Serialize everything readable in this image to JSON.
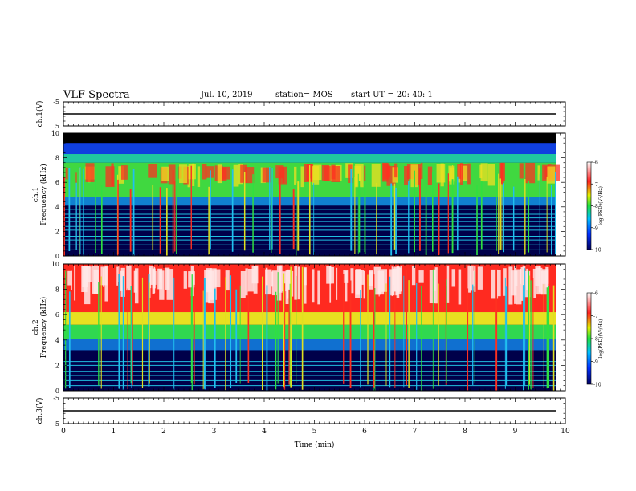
{
  "header": {
    "title": "VLF Spectra",
    "date": "Jul. 10, 2019",
    "station": "station= MOS",
    "start": "start  UT =   20: 40: 1"
  },
  "chart_data": [
    {
      "type": "line",
      "panel": "ch1-waveform",
      "ylabel": "ch.1(V)",
      "xlim": [
        0,
        10
      ],
      "ylim": [
        -5,
        5
      ],
      "yticks": [
        "5",
        "-5"
      ],
      "series": [
        {
          "x": [
            0,
            9.82
          ],
          "values": [
            0,
            0
          ]
        }
      ]
    },
    {
      "type": "heatmap",
      "panel": "ch1-spectrogram",
      "ylabel": "ch.1\nFrequency (kHz)",
      "xlim": [
        0,
        10
      ],
      "ylim": [
        0,
        10
      ],
      "data_xmax": 9.82,
      "yticks": [
        "0",
        "2",
        "4",
        "6",
        "8",
        "10"
      ],
      "colorbar": {
        "label": "log(PSD)(V²/Hz)",
        "range": [
          -10,
          -6
        ],
        "ticks": [
          "-6",
          "-7",
          "-8",
          "-9",
          "-10"
        ]
      },
      "colors": {
        "low": "#00005a",
        "mid": "#30e040",
        "high": "#ff2020",
        "top": "#ffffff"
      }
    },
    {
      "type": "heatmap",
      "panel": "ch2-spectrogram",
      "ylabel": "ch.2\nFrequency (kHz)",
      "xlim": [
        0,
        10
      ],
      "ylim": [
        0,
        10
      ],
      "data_xmax": 9.82,
      "yticks": [
        "0",
        "2",
        "4",
        "6",
        "8",
        "10"
      ],
      "colorbar": {
        "label": "log(PSD)(V²/Hz)",
        "range": [
          -10,
          -6
        ],
        "ticks": [
          "-6",
          "-7",
          "-8",
          "-9",
          "-10"
        ]
      }
    },
    {
      "type": "line",
      "panel": "ch3-waveform",
      "ylabel": "ch.3(V)",
      "xlabel": "Time (min)",
      "xlim": [
        0,
        10
      ],
      "ylim": [
        -5,
        5
      ],
      "yticks": [
        "5",
        "-5"
      ],
      "xticks": [
        "0",
        "1",
        "2",
        "3",
        "4",
        "5",
        "6",
        "7",
        "8",
        "9",
        "10"
      ],
      "series": [
        {
          "x": [
            0,
            9.82
          ],
          "values": [
            0,
            0
          ]
        }
      ]
    }
  ]
}
